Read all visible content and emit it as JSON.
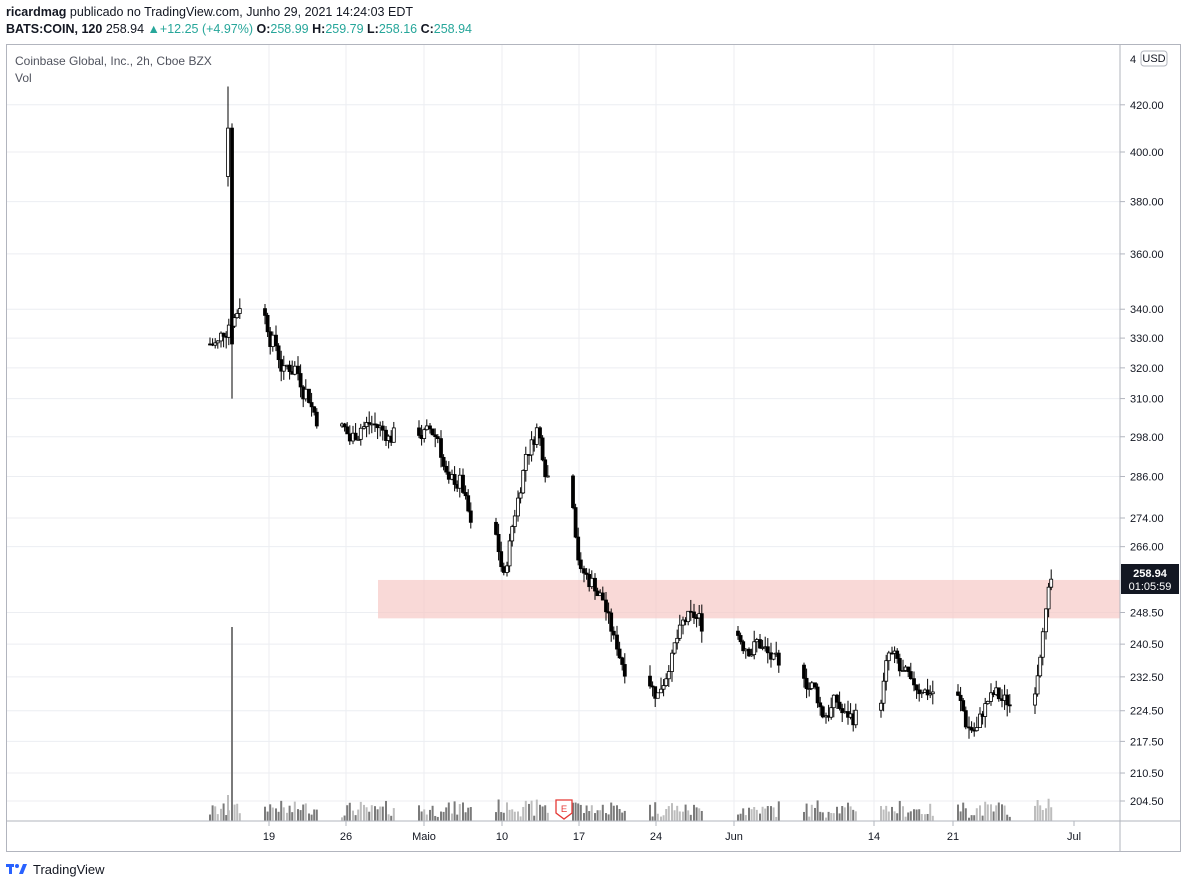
{
  "header": {
    "user": "ricardmag",
    "published_text": " publicado no TradingView.com, Junho 29, 2021 14:24:03 EDT",
    "symbol": "BATS:COIN, 120",
    "last": "258.94",
    "change": "+12.25 (+4.97%)",
    "o_label": "O:",
    "o_value": "258.99",
    "h_label": "H:",
    "h_value": "259.79",
    "l_label": "L:",
    "l_value": "258.16",
    "c_label": "C:",
    "c_value": "258.94"
  },
  "legend": {
    "title": "Coinbase Global, Inc., 2h, Cboe BZX",
    "volume_label": "Vol"
  },
  "footer": {
    "brand": "TradingView"
  },
  "chart_data": {
    "type": "candlestick",
    "symbol": "COIN",
    "interval": "2h",
    "currency": "USD",
    "price_scale": "log",
    "yticks": [
      "420.00",
      "400.00",
      "380.00",
      "360.00",
      "340.00",
      "330.00",
      "320.00",
      "310.00",
      "298.00",
      "286.00",
      "274.00",
      "266.00",
      "248.50",
      "240.50",
      "232.50",
      "224.50",
      "217.50",
      "210.50",
      "204.50"
    ],
    "ytick_partial": "4",
    "xticks": [
      "19",
      "26",
      "Maio",
      "10",
      "17",
      "24",
      "Jun",
      "14",
      "21",
      "Jul"
    ],
    "last_price": "258.94",
    "countdown": "01:05:59",
    "earnings_marker": "E",
    "zone": {
      "from": 247,
      "to": 257,
      "color": "#f7c9c6"
    },
    "colors": {
      "up": "#ffffff",
      "down": "#000000",
      "outline": "#000000",
      "volume": "#9e9e9e"
    },
    "approx_closes": [
      {
        "date": "04-14",
        "price": 328
      },
      {
        "date": "04-15",
        "price": 335
      },
      {
        "date": "04-16",
        "price": 342
      },
      {
        "date": "04-19",
        "price": 328
      },
      {
        "date": "04-20",
        "price": 318
      },
      {
        "date": "04-21",
        "price": 320
      },
      {
        "date": "04-22",
        "price": 312
      },
      {
        "date": "04-23",
        "price": 304
      },
      {
        "date": "04-26",
        "price": 297
      },
      {
        "date": "04-27",
        "price": 301
      },
      {
        "date": "04-28",
        "price": 302
      },
      {
        "date": "04-29",
        "price": 300
      },
      {
        "date": "04-30",
        "price": 298
      },
      {
        "date": "05-03",
        "price": 299
      },
      {
        "date": "05-04",
        "price": 298
      },
      {
        "date": "05-05",
        "price": 283
      },
      {
        "date": "05-06",
        "price": 284
      },
      {
        "date": "05-07",
        "price": 271
      },
      {
        "date": "05-10",
        "price": 257
      },
      {
        "date": "05-11",
        "price": 276
      },
      {
        "date": "05-12",
        "price": 293
      },
      {
        "date": "05-13",
        "price": 300
      },
      {
        "date": "05-14",
        "price": 286
      },
      {
        "date": "05-17",
        "price": 258
      },
      {
        "date": "05-18",
        "price": 256
      },
      {
        "date": "05-19",
        "price": 252
      },
      {
        "date": "05-20",
        "price": 241
      },
      {
        "date": "05-21",
        "price": 235
      },
      {
        "date": "05-24",
        "price": 228
      },
      {
        "date": "05-25",
        "price": 236
      },
      {
        "date": "05-26",
        "price": 243
      },
      {
        "date": "05-27",
        "price": 247
      },
      {
        "date": "05-28",
        "price": 246
      },
      {
        "date": "06-01",
        "price": 240
      },
      {
        "date": "06-02",
        "price": 241
      },
      {
        "date": "06-03",
        "price": 238
      },
      {
        "date": "06-04",
        "price": 234
      },
      {
        "date": "06-07",
        "price": 230
      },
      {
        "date": "06-08",
        "price": 224
      },
      {
        "date": "06-09",
        "price": 226
      },
      {
        "date": "06-10",
        "price": 223
      },
      {
        "date": "06-11",
        "price": 223
      },
      {
        "date": "06-14",
        "price": 238
      },
      {
        "date": "06-15",
        "price": 234
      },
      {
        "date": "06-16",
        "price": 230
      },
      {
        "date": "06-17",
        "price": 230
      },
      {
        "date": "06-18",
        "price": 229
      },
      {
        "date": "06-21",
        "price": 222
      },
      {
        "date": "06-22",
        "price": 220
      },
      {
        "date": "06-23",
        "price": 227
      },
      {
        "date": "06-24",
        "price": 228
      },
      {
        "date": "06-25",
        "price": 226
      },
      {
        "date": "06-28",
        "price": 246
      },
      {
        "date": "06-29",
        "price": 258.94
      }
    ]
  }
}
